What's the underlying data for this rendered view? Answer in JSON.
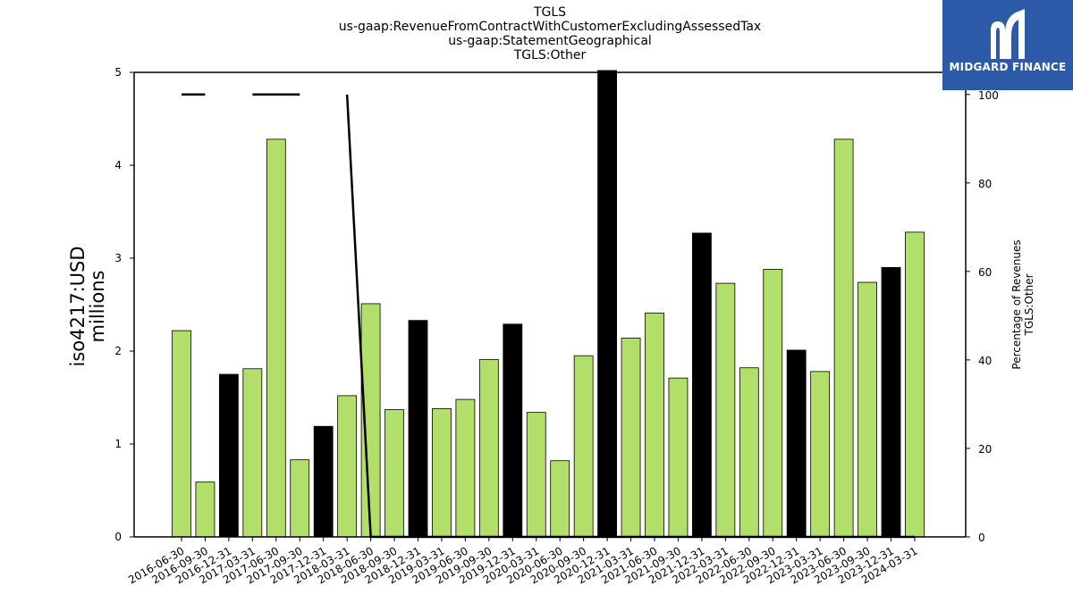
{
  "logo": {
    "name": "MIDGARD FINANCE"
  },
  "colors": {
    "green": "#b2df6a",
    "black": "#000000"
  },
  "chart_data": {
    "type": "bar",
    "title_lines": [
      "TGLS",
      "us-gaap:RevenueFromContractWithCustomerExcludingAssessedTax",
      "us-gaap:StatementGeographical",
      "TGLS:Other"
    ],
    "ylabel_left": [
      "iso4217:USD",
      "millions"
    ],
    "ylabel_right": [
      "Percentage of Revenues",
      "TGLS:Other"
    ],
    "ylim_left": [
      0,
      5
    ],
    "ylim_right": [
      0,
      105
    ],
    "yticks_left": [
      0,
      1,
      2,
      3,
      4,
      5
    ],
    "yticks_right": [
      0,
      20,
      40,
      60,
      80,
      100
    ],
    "categories": [
      "2016-06-30",
      "2016-09-30",
      "2016-12-31",
      "2017-03-31",
      "2017-06-30",
      "2017-09-30",
      "2017-12-31",
      "2018-03-31",
      "2018-06-30",
      "2018-09-30",
      "2018-12-31",
      "2019-03-31",
      "2019-06-30",
      "2019-09-30",
      "2019-12-31",
      "2020-03-31",
      "2020-06-30",
      "2020-09-30",
      "2020-12-31",
      "2021-03-31",
      "2021-06-30",
      "2021-09-30",
      "2021-12-31",
      "2022-03-31",
      "2022-06-30",
      "2022-09-30",
      "2022-12-31",
      "2023-03-31",
      "2023-06-30",
      "2023-09-30",
      "2023-12-31",
      "2024-03-31"
    ],
    "series": [
      {
        "values": [
          2.22,
          0.59,
          1.75,
          1.81,
          4.28,
          0.83,
          1.19,
          1.52,
          2.51,
          1.37,
          2.33,
          1.38,
          1.48,
          1.91,
          2.29,
          1.34,
          0.82,
          1.95,
          5.02,
          2.14,
          2.41,
          1.71,
          3.27,
          2.73,
          1.82,
          2.88,
          2.01,
          1.78,
          4.28,
          2.74,
          2.9,
          3.28
        ],
        "bar_colors": [
          "green",
          "green",
          "black",
          "green",
          "green",
          "green",
          "black",
          "green",
          "green",
          "green",
          "black",
          "green",
          "green",
          "green",
          "black",
          "green",
          "green",
          "green",
          "black",
          "green",
          "green",
          "green",
          "black",
          "green",
          "green",
          "green",
          "black",
          "green",
          "green",
          "green",
          "black",
          "green"
        ]
      },
      {
        "type": "line",
        "axis": "right",
        "values": [
          100,
          100,
          null,
          100,
          100,
          100,
          null,
          100,
          0,
          0,
          0,
          0,
          0,
          0,
          0,
          0,
          0,
          0,
          0,
          0,
          0,
          0,
          0,
          0,
          0,
          0,
          0,
          0,
          0,
          0,
          0,
          0
        ]
      }
    ],
    "grid": false
  }
}
